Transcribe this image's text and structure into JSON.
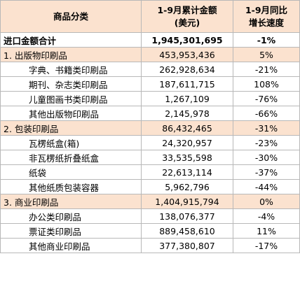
{
  "header": {
    "category": "商品分类",
    "amount_line1": "1-9月累计金额",
    "amount_line2": "(美元)",
    "growth_line1": "1-9月同比",
    "growth_line2": "增长速度"
  },
  "total": {
    "label": "进口金额合计",
    "amount": "1,945,301,695",
    "growth": "-1%"
  },
  "rows": [
    {
      "type": "cat",
      "label": "1. 出版物印刷品",
      "amount": "453,953,436",
      "growth": "5%"
    },
    {
      "type": "sub",
      "label": "字典、书籍类印刷品",
      "amount": "262,928,634",
      "growth": "-21%"
    },
    {
      "type": "sub",
      "label": "期刊、杂志类印刷品",
      "amount": "187,611,715",
      "growth": "108%"
    },
    {
      "type": "sub",
      "label": "儿童图画书类印刷品",
      "amount": "1,267,109",
      "growth": "-76%"
    },
    {
      "type": "sub",
      "label": "其他出版物印刷品",
      "amount": "2,145,978",
      "growth": "-66%"
    },
    {
      "type": "cat",
      "label": "2. 包装印刷品",
      "amount": "86,432,465",
      "growth": "-31%"
    },
    {
      "type": "sub",
      "label": "瓦楞纸盒(箱)",
      "amount": "24,320,957",
      "growth": "-23%"
    },
    {
      "type": "sub",
      "label": "非瓦楞纸折叠纸盒",
      "amount": "33,535,598",
      "growth": "-30%"
    },
    {
      "type": "sub",
      "label": "纸袋",
      "amount": "22,613,114",
      "growth": "-37%"
    },
    {
      "type": "sub",
      "label": "其他纸质包装容器",
      "amount": "5,962,796",
      "growth": "-44%"
    },
    {
      "type": "cat",
      "label": "3. 商业印刷品",
      "amount": "1,404,915,794",
      "growth": "0%"
    },
    {
      "type": "sub",
      "label": "办公类印刷品",
      "amount": "138,076,377",
      "growth": "-4%"
    },
    {
      "type": "sub",
      "label": "票证类印刷品",
      "amount": "889,458,610",
      "growth": "11%"
    },
    {
      "type": "sub",
      "label": "其他商业印刷品",
      "amount": "377,380,807",
      "growth": "-17%"
    }
  ],
  "colors": {
    "header_bg": "#fbe2cf",
    "category_bg": "#fbe2cf",
    "border": "#b8b8b8"
  }
}
